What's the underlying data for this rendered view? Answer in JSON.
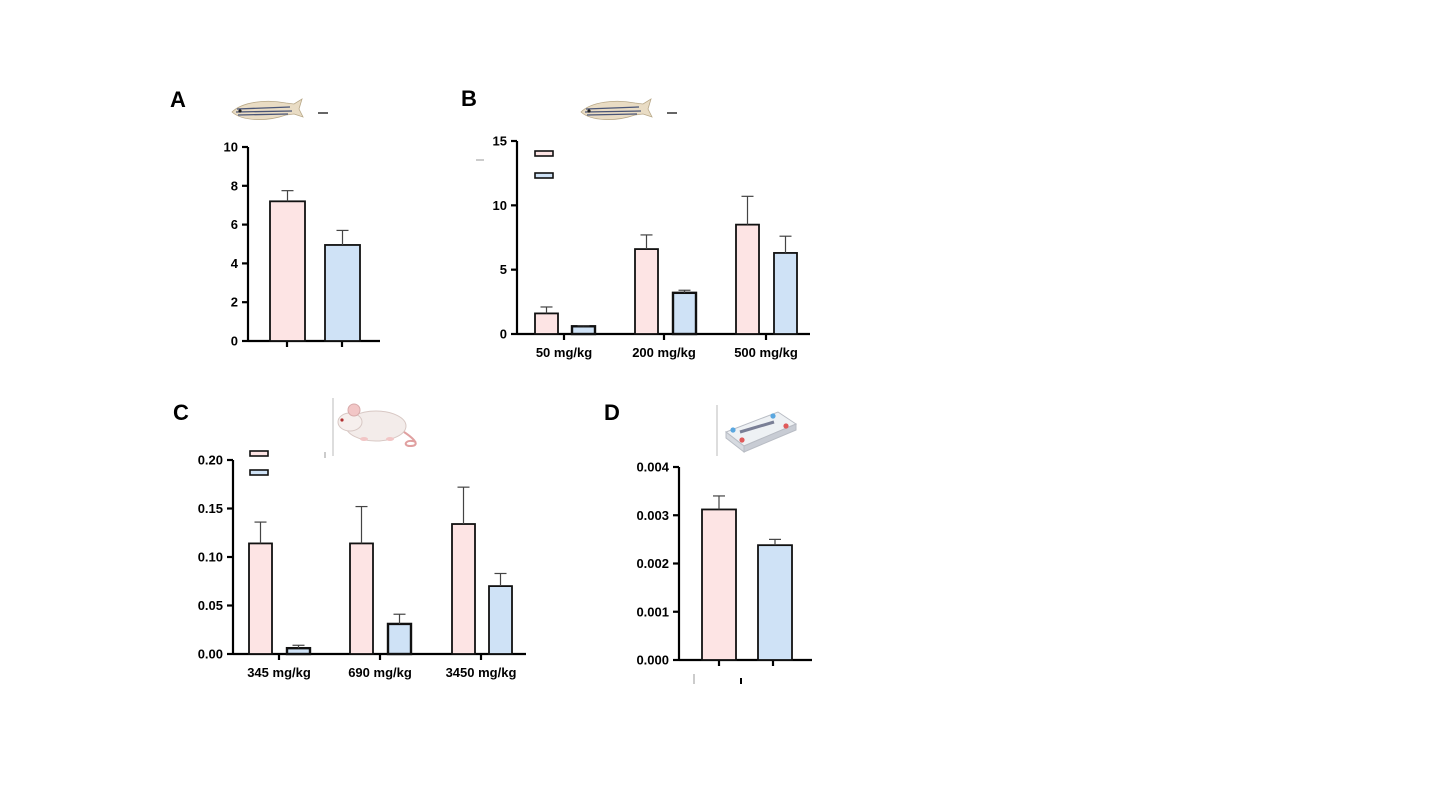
{
  "colors": {
    "series_a": "#fde4e4",
    "series_b": "#cfe2f6",
    "stroke": "#111111"
  },
  "icons": {
    "A": "zebrafish-icon",
    "B": "zebrafish-icon",
    "C": "mouse-icon",
    "D": "organ-chip-icon"
  },
  "chart_data": [
    {
      "panel": "A",
      "type": "bar",
      "title": "",
      "xlabel": "",
      "ylabel": "",
      "categories": [
        ""
      ],
      "ylim": [
        0,
        10
      ],
      "yticks": [
        "0",
        "2",
        "4",
        "6",
        "8",
        "10"
      ],
      "series": [
        {
          "name": "",
          "values": [
            7.2
          ],
          "errors": [
            0.55
          ]
        },
        {
          "name": "",
          "values": [
            4.95
          ],
          "errors": [
            0.75
          ]
        }
      ]
    },
    {
      "panel": "B",
      "type": "bar",
      "title": "",
      "xlabel": "",
      "ylabel": "",
      "categories": [
        "50 mg/kg",
        "200 mg/kg",
        "500 mg/kg"
      ],
      "ylim": [
        0,
        15
      ],
      "yticks": [
        "0",
        "5",
        "10",
        "15"
      ],
      "legend": "top-left",
      "series": [
        {
          "name": "",
          "values": [
            1.6,
            6.6,
            8.5
          ],
          "errors": [
            0.5,
            1.1,
            2.2
          ]
        },
        {
          "name": "",
          "values": [
            0.6,
            3.2,
            6.3
          ],
          "errors": [
            0.05,
            0.2,
            1.3
          ]
        }
      ]
    },
    {
      "panel": "C",
      "type": "bar",
      "title": "",
      "xlabel": "",
      "ylabel": "",
      "categories": [
        "345 mg/kg",
        "690 mg/kg",
        "3450 mg/kg"
      ],
      "ylim": [
        0,
        0.2
      ],
      "yticks": [
        "0.00",
        "0.05",
        "0.10",
        "0.15",
        "0.20"
      ],
      "legend": "top-left",
      "series": [
        {
          "name": "",
          "values": [
            0.114,
            0.114,
            0.134
          ],
          "errors": [
            0.022,
            0.038,
            0.038
          ]
        },
        {
          "name": "",
          "values": [
            0.006,
            0.031,
            0.07
          ],
          "errors": [
            0.003,
            0.01,
            0.013
          ]
        }
      ]
    },
    {
      "panel": "D",
      "type": "bar",
      "title": "",
      "xlabel": "",
      "ylabel": "",
      "categories": [
        ""
      ],
      "ylim": [
        0,
        0.004
      ],
      "yticks": [
        "0.000",
        "0.001",
        "0.002",
        "0.003",
        "0.004"
      ],
      "series": [
        {
          "name": "",
          "values": [
            0.00312
          ],
          "errors": [
            0.00028
          ]
        },
        {
          "name": "",
          "values": [
            0.00238
          ],
          "errors": [
            0.00012
          ]
        }
      ]
    }
  ]
}
